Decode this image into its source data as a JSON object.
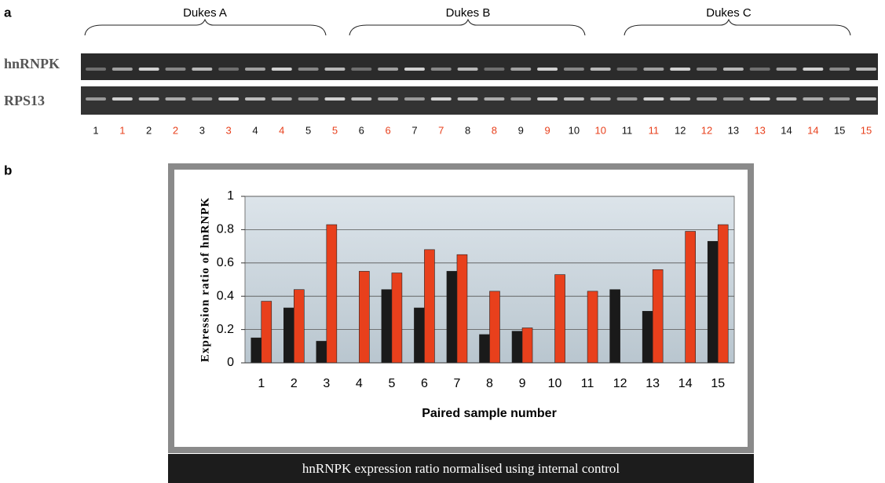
{
  "panel_a": "a",
  "panel_b": "b",
  "gel": {
    "groups": [
      "Dukes A",
      "Dukes B",
      "Dukes C"
    ],
    "rows": [
      "hnRNPK",
      "RPS13"
    ],
    "lanes": [
      {
        "label": "1",
        "color": "#111111"
      },
      {
        "label": "1",
        "color": "#e8401c"
      },
      {
        "label": "2",
        "color": "#111111"
      },
      {
        "label": "2",
        "color": "#e8401c"
      },
      {
        "label": "3",
        "color": "#111111"
      },
      {
        "label": "3",
        "color": "#e8401c"
      },
      {
        "label": "4",
        "color": "#111111"
      },
      {
        "label": "4",
        "color": "#e8401c"
      },
      {
        "label": "5",
        "color": "#111111"
      },
      {
        "label": "5",
        "color": "#e8401c"
      },
      {
        "label": "6",
        "color": "#111111"
      },
      {
        "label": "6",
        "color": "#e8401c"
      },
      {
        "label": "7",
        "color": "#111111"
      },
      {
        "label": "7",
        "color": "#e8401c"
      },
      {
        "label": "8",
        "color": "#111111"
      },
      {
        "label": "8",
        "color": "#e8401c"
      },
      {
        "label": "9",
        "color": "#111111"
      },
      {
        "label": "9",
        "color": "#e8401c"
      },
      {
        "label": "10",
        "color": "#111111"
      },
      {
        "label": "10",
        "color": "#e8401c"
      },
      {
        "label": "11",
        "color": "#111111"
      },
      {
        "label": "11",
        "color": "#e8401c"
      },
      {
        "label": "12",
        "color": "#111111"
      },
      {
        "label": "12",
        "color": "#e8401c"
      },
      {
        "label": "13",
        "color": "#111111"
      },
      {
        "label": "13",
        "color": "#e8401c"
      },
      {
        "label": "14",
        "color": "#111111"
      },
      {
        "label": "14",
        "color": "#e8401c"
      },
      {
        "label": "15",
        "color": "#111111"
      },
      {
        "label": "15",
        "color": "#e8401c"
      }
    ]
  },
  "chart_data": {
    "type": "bar",
    "caption": "hnRNPK expression ratio normalised using internal control",
    "x_label": "Paired sample number",
    "y_label": "Expression ratio of hnRNPK",
    "categories": [
      "1",
      "2",
      "3",
      "4",
      "5",
      "6",
      "7",
      "8",
      "9",
      "10",
      "11",
      "12",
      "13",
      "14",
      "15"
    ],
    "series": [
      {
        "color": "#1a1a1a",
        "values": [
          0.15,
          0.33,
          0.13,
          0,
          0.44,
          0.33,
          0.55,
          0.17,
          0.19,
          0,
          0,
          0.44,
          0.31,
          0,
          0.73
        ]
      },
      {
        "color": "#e8401c",
        "values": [
          0.37,
          0.44,
          0.83,
          0.55,
          0.54,
          0.68,
          0.65,
          0.43,
          0.21,
          0.53,
          0.43,
          0,
          0.56,
          0.79,
          0.83
        ]
      }
    ],
    "ylim": [
      0,
      1
    ],
    "yticks": [
      0,
      0.2,
      0.4,
      0.6,
      0.8,
      1
    ],
    "grid": true
  }
}
